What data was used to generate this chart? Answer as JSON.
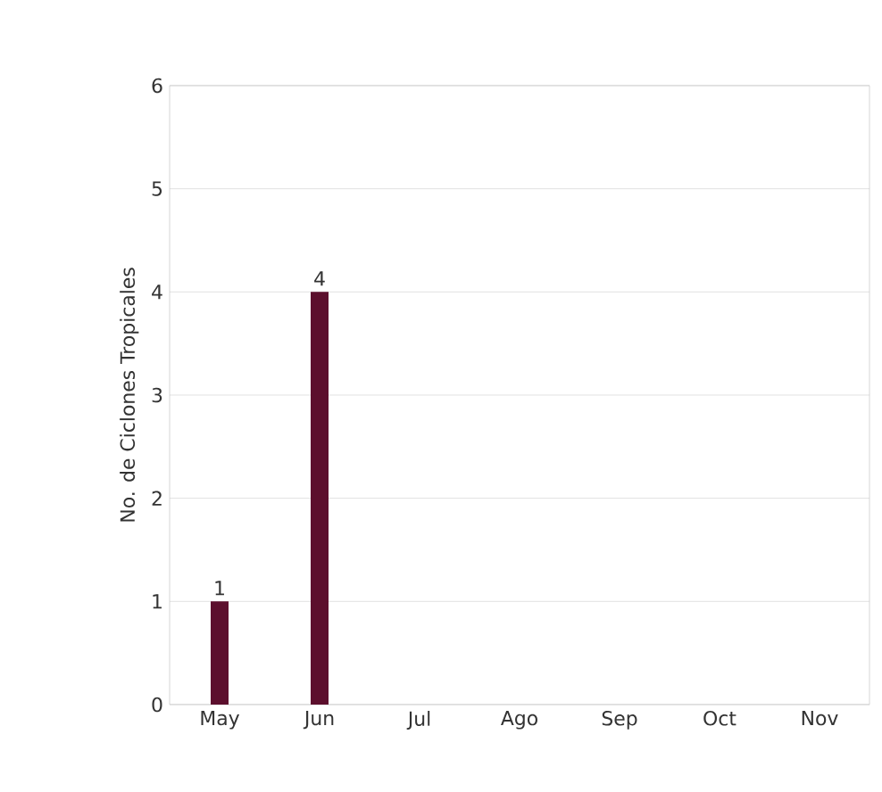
{
  "chart_data": {
    "type": "bar",
    "ylabel": "No. de Ciclones Tropicales",
    "categories": [
      "May",
      "Jun",
      "Jul",
      "Ago",
      "Sep",
      "Oct",
      "Nov"
    ],
    "values": [
      1,
      4,
      0,
      0,
      0,
      0,
      0
    ],
    "value_labels": [
      "1",
      "4",
      null,
      null,
      null,
      null,
      null
    ],
    "color": "#5c0f2d",
    "ylim": [
      0,
      6
    ],
    "yticks": [
      0,
      1,
      2,
      3,
      4,
      5,
      6
    ],
    "grid": "y"
  }
}
